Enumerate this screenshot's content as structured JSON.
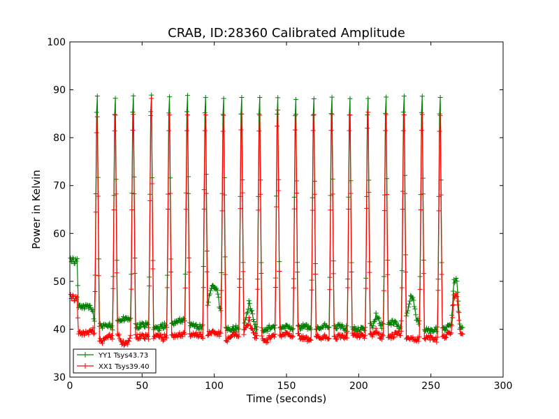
{
  "chart_data": {
    "type": "line",
    "title": "CRAB, ID:28360 Calibrated Amplitude",
    "xlabel": "Time (seconds)",
    "ylabel": "Power in Kelvin",
    "xlim": [
      0,
      300
    ],
    "ylim": [
      30,
      100
    ],
    "xticks": [
      0,
      50,
      100,
      150,
      200,
      250,
      300
    ],
    "yticks": [
      30,
      40,
      50,
      60,
      70,
      80,
      90,
      100
    ],
    "grid": false,
    "legend_position": "lower-left",
    "marker": "plus",
    "series": [
      {
        "name": "YY1 Tsys43.73",
        "color": "#008000",
        "peaks": [
          {
            "t": 18.8,
            "y": 95.5
          },
          {
            "t": 31.3,
            "y": 95.0
          },
          {
            "t": 43.8,
            "y": 95.5
          },
          {
            "t": 56.3,
            "y": 95.8
          },
          {
            "t": 68.8,
            "y": 95.3
          },
          {
            "t": 81.3,
            "y": 95.6
          },
          {
            "t": 93.8,
            "y": 94.8
          },
          {
            "t": 106.3,
            "y": 94.8
          },
          {
            "t": 118.8,
            "y": 95.3
          },
          {
            "t": 131.3,
            "y": 95.3
          },
          {
            "t": 143.8,
            "y": 95.2
          },
          {
            "t": 156.3,
            "y": 94.8
          },
          {
            "t": 168.8,
            "y": 95.0
          },
          {
            "t": 181.3,
            "y": 95.3
          },
          {
            "t": 193.8,
            "y": 95.0
          },
          {
            "t": 206.3,
            "y": 95.0
          },
          {
            "t": 218.8,
            "y": 95.3
          },
          {
            "t": 231.3,
            "y": 95.3
          },
          {
            "t": 243.8,
            "y": 95.5
          },
          {
            "t": 256.3,
            "y": 95.3
          }
        ],
        "baseline_points": [
          [
            0.5,
            54.3
          ],
          [
            2,
            54.4
          ],
          [
            4,
            54.2
          ],
          [
            5,
            54.3
          ],
          [
            6,
            45.0
          ],
          [
            8,
            44.6
          ],
          [
            10,
            44.8
          ],
          [
            12,
            44.5
          ],
          [
            14,
            44.6
          ],
          [
            16,
            43.8
          ],
          [
            17,
            41.5
          ],
          [
            20,
            40.8
          ],
          [
            24,
            40.5
          ],
          [
            28,
            40.7
          ],
          [
            30,
            40.3
          ],
          [
            34,
            42.0
          ],
          [
            38,
            42.2
          ],
          [
            40,
            42.5
          ],
          [
            42,
            42.0
          ],
          [
            46,
            40.5
          ],
          [
            50,
            41.0
          ],
          [
            54,
            40.7
          ],
          [
            58,
            40.4
          ],
          [
            62,
            40.2
          ],
          [
            66,
            40.9
          ],
          [
            70,
            41.2
          ],
          [
            74,
            41.7
          ],
          [
            78,
            42.0
          ],
          [
            84,
            40.8
          ],
          [
            88,
            40.6
          ],
          [
            91,
            40.3
          ],
          [
            96,
            46.0
          ],
          [
            98,
            48.8
          ],
          [
            100,
            48.8
          ],
          [
            102,
            48.5
          ],
          [
            104,
            44.0
          ],
          [
            108,
            40.3
          ],
          [
            112,
            40.0
          ],
          [
            116,
            40.5
          ],
          [
            120,
            40.0
          ],
          [
            122,
            42.0
          ],
          [
            124,
            45.5
          ],
          [
            126,
            43.5
          ],
          [
            128,
            40.5
          ],
          [
            134,
            39.8
          ],
          [
            138,
            40.3
          ],
          [
            142,
            40.6
          ],
          [
            146,
            40.2
          ],
          [
            150,
            40.6
          ],
          [
            154,
            40.4
          ],
          [
            158,
            40.3
          ],
          [
            162,
            40.6
          ],
          [
            166,
            40.2
          ],
          [
            170,
            39.8
          ],
          [
            174,
            40.3
          ],
          [
            178,
            40.8
          ],
          [
            184,
            40.4
          ],
          [
            188,
            40.6
          ],
          [
            192,
            40.1
          ],
          [
            196,
            40.3
          ],
          [
            200,
            40.0
          ],
          [
            204,
            40.2
          ],
          [
            210,
            40.8
          ],
          [
            212,
            43.0
          ],
          [
            214,
            42.0
          ],
          [
            216,
            40.6
          ],
          [
            222,
            41.0
          ],
          [
            224,
            41.6
          ],
          [
            226,
            41.2
          ],
          [
            228,
            40.2
          ],
          [
            234,
            44.0
          ],
          [
            236,
            47.0
          ],
          [
            238,
            46.0
          ],
          [
            240,
            42.0
          ],
          [
            246,
            40.0
          ],
          [
            250,
            39.6
          ],
          [
            254,
            40.0
          ],
          [
            258,
            40.2
          ],
          [
            262,
            40.4
          ],
          [
            264,
            41.0
          ],
          [
            266,
            50.0
          ],
          [
            268,
            50.2
          ],
          [
            270,
            40.6
          ],
          [
            272,
            40.6
          ]
        ]
      },
      {
        "name": "XX1 Tsys39.40",
        "color": "#ff0000",
        "peaks": [
          {
            "t": 18.8,
            "y": 91.0
          },
          {
            "t": 31.3,
            "y": 91.3
          },
          {
            "t": 43.8,
            "y": 91.5
          },
          {
            "t": 56.3,
            "y": 95.3
          },
          {
            "t": 68.8,
            "y": 91.3
          },
          {
            "t": 81.3,
            "y": 91.3
          },
          {
            "t": 93.8,
            "y": 91.3
          },
          {
            "t": 106.3,
            "y": 91.3
          },
          {
            "t": 118.8,
            "y": 91.5
          },
          {
            "t": 131.3,
            "y": 91.3
          },
          {
            "t": 143.8,
            "y": 92.5
          },
          {
            "t": 156.3,
            "y": 91.5
          },
          {
            "t": 168.8,
            "y": 91.5
          },
          {
            "t": 181.3,
            "y": 91.5
          },
          {
            "t": 193.8,
            "y": 91.3
          },
          {
            "t": 206.3,
            "y": 92.0
          },
          {
            "t": 218.8,
            "y": 91.5
          },
          {
            "t": 231.3,
            "y": 91.3
          },
          {
            "t": 243.8,
            "y": 91.5
          },
          {
            "t": 256.3,
            "y": 91.3
          }
        ],
        "baseline_points": [
          [
            0.5,
            46.7
          ],
          [
            2,
            46.6
          ],
          [
            4,
            46.4
          ],
          [
            5,
            46.3
          ],
          [
            6,
            39.5
          ],
          [
            8,
            39.0
          ],
          [
            10,
            39.3
          ],
          [
            12,
            38.8
          ],
          [
            14,
            39.4
          ],
          [
            16,
            40.0
          ],
          [
            18,
            38.0
          ],
          [
            20,
            37.8
          ],
          [
            22,
            37.4
          ],
          [
            24,
            37.6
          ],
          [
            26,
            38.4
          ],
          [
            30,
            38.5
          ],
          [
            34,
            38.8
          ],
          [
            36,
            37.2
          ],
          [
            38,
            37.0
          ],
          [
            40,
            37.4
          ],
          [
            42,
            38.4
          ],
          [
            46,
            38.4
          ],
          [
            50,
            38.6
          ],
          [
            54,
            38.2
          ],
          [
            58,
            38.5
          ],
          [
            62,
            38.8
          ],
          [
            64,
            37.8
          ],
          [
            66,
            38.7
          ],
          [
            70,
            38.9
          ],
          [
            74,
            38.7
          ],
          [
            78,
            39.0
          ],
          [
            84,
            38.6
          ],
          [
            88,
            38.9
          ],
          [
            92,
            38.6
          ],
          [
            96,
            39.2
          ],
          [
            100,
            39.4
          ],
          [
            104,
            39.0
          ],
          [
            108,
            37.5
          ],
          [
            110,
            38.3
          ],
          [
            114,
            39.2
          ],
          [
            118,
            38.6
          ],
          [
            122,
            40.0
          ],
          [
            124,
            42.0
          ],
          [
            126,
            39.8
          ],
          [
            128,
            38.6
          ],
          [
            132,
            38.4
          ],
          [
            136,
            37.6
          ],
          [
            140,
            38.7
          ],
          [
            146,
            38.6
          ],
          [
            150,
            39.1
          ],
          [
            154,
            38.8
          ],
          [
            158,
            38.7
          ],
          [
            162,
            38.0
          ],
          [
            166,
            37.7
          ],
          [
            170,
            38.4
          ],
          [
            174,
            38.1
          ],
          [
            178,
            38.4
          ],
          [
            184,
            38.2
          ],
          [
            188,
            38.5
          ],
          [
            192,
            38.7
          ],
          [
            196,
            39.0
          ],
          [
            200,
            38.8
          ],
          [
            204,
            38.6
          ],
          [
            208,
            38.4
          ],
          [
            212,
            39.8
          ],
          [
            214,
            38.8
          ],
          [
            218,
            38.0
          ],
          [
            222,
            38.2
          ],
          [
            226,
            39.2
          ],
          [
            230,
            39.0
          ],
          [
            234,
            38.4
          ],
          [
            236,
            38.2
          ],
          [
            240,
            37.6
          ],
          [
            244,
            38.4
          ],
          [
            250,
            38.2
          ],
          [
            254,
            37.8
          ],
          [
            258,
            38.4
          ],
          [
            262,
            38.9
          ],
          [
            264,
            39.2
          ],
          [
            266,
            46.8
          ],
          [
            268,
            47.0
          ],
          [
            270,
            39.5
          ],
          [
            272,
            39.2
          ]
        ]
      }
    ]
  }
}
